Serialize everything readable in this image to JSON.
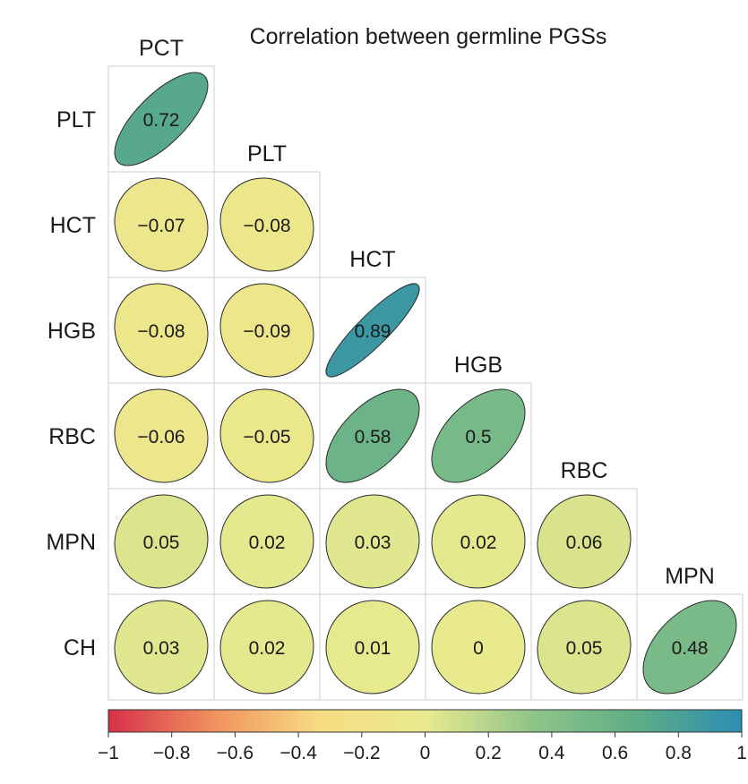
{
  "chart_data": {
    "type": "heatmap",
    "title": "Correlation between germline PGSs",
    "column_labels": [
      "PCT",
      "PLT",
      "HCT",
      "HGB",
      "RBC",
      "MPN"
    ],
    "row_labels": [
      "PLT",
      "HCT",
      "HGB",
      "RBC",
      "MPN",
      "CH"
    ],
    "matrix": [
      [
        0.72
      ],
      [
        -0.07,
        -0.08
      ],
      [
        -0.08,
        -0.09,
        0.89
      ],
      [
        -0.06,
        -0.05,
        0.58,
        0.5
      ],
      [
        0.05,
        0.02,
        0.03,
        0.02,
        0.06
      ],
      [
        0.03,
        0.02,
        0.01,
        0,
        0.05,
        0.48
      ]
    ],
    "value_labels": [
      [
        "0.72"
      ],
      [
        "−0.07",
        "−0.08"
      ],
      [
        "−0.08",
        "−0.09",
        "0.89"
      ],
      [
        "−0.06",
        "−0.05",
        "0.58",
        "0.5"
      ],
      [
        "0.05",
        "0.02",
        "0.03",
        "0.02",
        "0.06"
      ],
      [
        "0.03",
        "0.02",
        "0.01",
        "0",
        "0.05",
        "0.48"
      ]
    ],
    "shape": "lower-triangle",
    "glyph": "ellipse",
    "colorbar": {
      "range": [
        -1,
        1
      ],
      "ticks": [
        -1,
        -0.8,
        -0.6,
        -0.4,
        -0.2,
        0,
        0.2,
        0.4,
        0.6,
        0.8,
        1
      ],
      "tick_labels": [
        "−1",
        "−0.8",
        "−0.6",
        "−0.4",
        "−0.2",
        "0",
        "0.2",
        "0.4",
        "0.6",
        "0.8",
        "1"
      ],
      "placement": "bottom",
      "colors": [
        "#d7304a",
        "#f0925e",
        "#f7dc83",
        "#e9ea8e",
        "#90c58a",
        "#5fad86",
        "#2a8eb2"
      ]
    }
  }
}
